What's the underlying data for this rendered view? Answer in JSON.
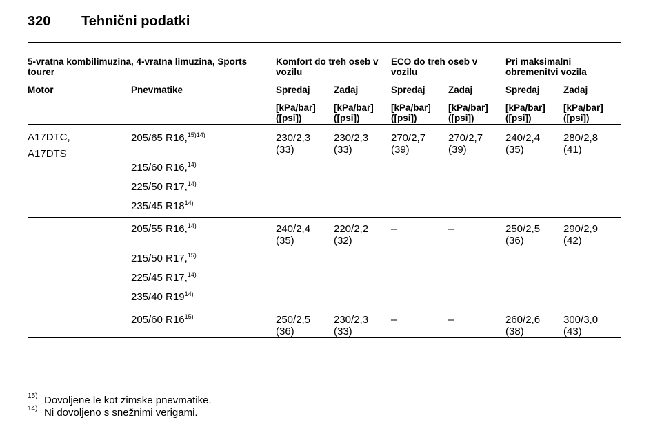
{
  "header": {
    "page": "320",
    "title": "Tehnični podatki"
  },
  "table": {
    "group_headers": [
      "5-vratna kombilimuzina, 4-vratna limuzina, Sports tourer",
      "Komfort do treh oseb v vozilu",
      "ECO do treh oseb v vozilu",
      "Pri maksimalni obremenitvi vozila"
    ],
    "columns": [
      "Motor",
      "Pnevmatike",
      "Spredaj",
      "Zadaj",
      "Spredaj",
      "Zadaj",
      "Spredaj",
      "Zadaj"
    ],
    "units": [
      "[kPa/bar] ([psi])",
      "[kPa/bar] ([psi])",
      "[kPa/bar] ([psi])",
      "[kPa/bar] ([psi])",
      "[kPa/bar] ([psi])",
      "[kPa/bar] ([psi])"
    ],
    "groups": [
      {
        "motor": "A17DTC, A17DTS",
        "tires": [
          {
            "size": "205/65 R16,",
            "note": "15)14)"
          },
          {
            "size": "215/60 R16,",
            "note": "14)"
          },
          {
            "size": "225/50 R17,",
            "note": "14)"
          },
          {
            "size": "235/45 R18",
            "note": "14)"
          }
        ],
        "values": [
          "230/2,3 (33)",
          "230/2,3 (33)",
          "270/2,7 (39)",
          "270/2,7 (39)",
          "240/2,4 (35)",
          "280/2,8 (41)"
        ]
      },
      {
        "tires": [
          {
            "size": "205/55 R16,",
            "note": "14)"
          },
          {
            "size": "215/50 R17,",
            "note": "15)"
          },
          {
            "size": "225/45 R17,",
            "note": "14)"
          },
          {
            "size": "235/40 R19",
            "note": "14)"
          }
        ],
        "values": [
          "240/2,4 (35)",
          "220/2,2 (32)",
          "–",
          "–",
          "250/2,5 (36)",
          "290/2,9 (42)"
        ]
      },
      {
        "tires": [
          {
            "size": "205/60 R16",
            "note": "15)"
          }
        ],
        "values": [
          "250/2,5 (36)",
          "230/2,3 (33)",
          "–",
          "–",
          "260/2,6 (38)",
          "300/3,0 (43)"
        ]
      }
    ]
  },
  "footnotes": [
    {
      "mark": "15)",
      "text": "Dovoljene le kot zimske pnevmatike."
    },
    {
      "mark": "14)",
      "text": "Ni dovoljeno s snežnimi verigami."
    }
  ]
}
